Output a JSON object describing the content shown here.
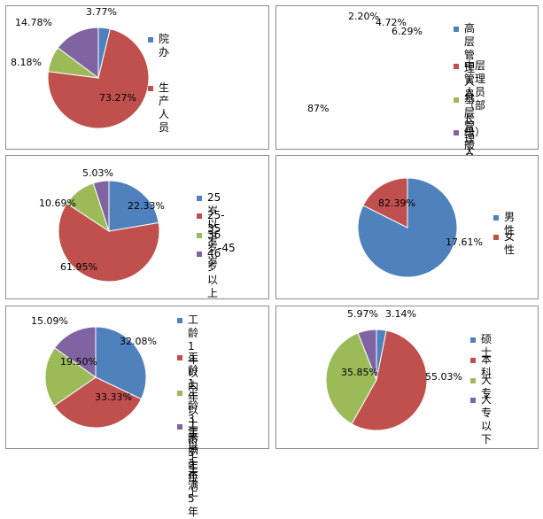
{
  "colors": {
    "blue": "#4f81bd",
    "red": "#c0504d",
    "green": "#9bbb59",
    "purple": "#8064a2"
  },
  "chart_data": [
    {
      "type": "pie",
      "legend_position": "right",
      "slices": [
        {
          "name": "院办",
          "value": 3.77,
          "label": "3.77%",
          "color": "#4f81bd"
        },
        {
          "name": "生产人员",
          "value": 73.27,
          "label": "73.27%",
          "color": "#c0504d"
        },
        {
          "name": "",
          "value": 8.18,
          "label": "8.18%",
          "color": "#9bbb59"
        },
        {
          "name": "",
          "value": 14.78,
          "label": "14.78%",
          "color": "#8064a2"
        }
      ]
    },
    {
      "type": "pie",
      "legend_position": "right",
      "slices": [
        {
          "name": "高层管理人员",
          "value": 2.2,
          "label": "2.20%",
          "color": "#4f81bd"
        },
        {
          "name": "中层管理人员\n（部长级）",
          "value": 4.72,
          "label": "4.72%",
          "color": "#c0504d"
        },
        {
          "name": "基层管理人员",
          "value": 6.29,
          "label": "6.29%",
          "color": "#9bbb59"
        },
        {
          "name": "一般员工",
          "value": 87,
          "label": "87%",
          "color": "#8064a2"
        }
      ]
    },
    {
      "type": "pie",
      "legend_position": "right",
      "slices": [
        {
          "name": "25岁以下",
          "value": 22.33,
          "label": "22.33%",
          "color": "#4f81bd"
        },
        {
          "name": "25-35岁",
          "value": 61.95,
          "label": "61.95%",
          "color": "#c0504d"
        },
        {
          "name": "36岁-45岁",
          "value": 10.69,
          "label": "10.69%",
          "color": "#9bbb59"
        },
        {
          "name": "46岁以上",
          "value": 5.03,
          "label": "5.03%",
          "color": "#8064a2"
        }
      ]
    },
    {
      "type": "pie",
      "legend_position": "right",
      "slices": [
        {
          "name": "男性",
          "value": 82.39,
          "label": "82.39%",
          "color": "#4f81bd"
        },
        {
          "name": "女性",
          "value": 17.61,
          "label": "17.61%",
          "color": "#c0504d"
        }
      ]
    },
    {
      "type": "pie",
      "legend_position": "right",
      "slices": [
        {
          "name": "工龄1年以内",
          "value": 32.08,
          "label": "32.08%",
          "color": "#4f81bd"
        },
        {
          "name": "工龄1年以上未\n满3年",
          "value": 33.33,
          "label": "33.33%",
          "color": "#c0504d"
        },
        {
          "name": "工龄3年以上未\n满5年",
          "value": 19.5,
          "label": "19.50%",
          "color": "#9bbb59"
        },
        {
          "name": "工龄5年以上",
          "value": 15.09,
          "label": "15.09%",
          "color": "#8064a2"
        }
      ]
    },
    {
      "type": "pie",
      "legend_position": "right",
      "slices": [
        {
          "name": "硕士",
          "value": 3.14,
          "label": "3.14%",
          "color": "#4f81bd"
        },
        {
          "name": "本科",
          "value": 55.03,
          "label": "55.03%",
          "color": "#c0504d"
        },
        {
          "name": "大专",
          "value": 35.85,
          "label": "35.85%",
          "color": "#9bbb59"
        },
        {
          "name": "大专以下",
          "value": 5.97,
          "label": "5.97%",
          "color": "#8064a2"
        }
      ]
    }
  ]
}
